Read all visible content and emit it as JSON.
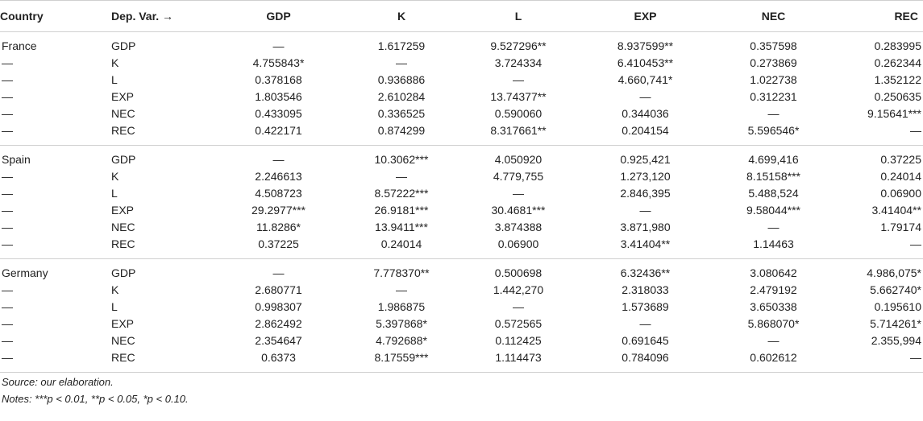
{
  "table": {
    "headers": [
      "Country",
      "Dep. Var. →",
      "GDP",
      "K",
      "L",
      "EXP",
      "NEC",
      "REC"
    ],
    "groups": [
      {
        "rows": [
          {
            "country": "France",
            "dep": "GDP",
            "values": [
              "—",
              "1.617259",
              "9.527296**",
              "8.937599**",
              "0.357598",
              "0.283995"
            ]
          },
          {
            "country": "—",
            "dep": "K",
            "values": [
              "4.755843*",
              "—",
              "3.724334",
              "6.410453**",
              "0.273869",
              "0.262344"
            ]
          },
          {
            "country": "—",
            "dep": "L",
            "values": [
              "0.378168",
              "0.936886",
              "—",
              "4.660,741*",
              "1.022738",
              "1.352122"
            ]
          },
          {
            "country": "—",
            "dep": "EXP",
            "values": [
              "1.803546",
              "2.610284",
              "13.74377**",
              "—",
              "0.312231",
              "0.250635"
            ]
          },
          {
            "country": "—",
            "dep": "NEC",
            "values": [
              "0.433095",
              "0.336525",
              "0.590060",
              "0.344036",
              "—",
              "9.15641***"
            ]
          },
          {
            "country": "—",
            "dep": "REC",
            "values": [
              "0.422171",
              "0.874299",
              "8.317661**",
              "0.204154",
              "5.596546*",
              "—"
            ]
          }
        ]
      },
      {
        "rows": [
          {
            "country": "Spain",
            "dep": "GDP",
            "values": [
              "—",
              "10.3062***",
              "4.050920",
              "0.925,421",
              "4.699,416",
              "0.37225"
            ]
          },
          {
            "country": "—",
            "dep": "K",
            "values": [
              "2.246613",
              "—",
              "4.779,755",
              "1.273,120",
              "8.15158***",
              "0.24014"
            ]
          },
          {
            "country": "—",
            "dep": "L",
            "values": [
              "4.508723",
              "8.57222***",
              "—",
              "2.846,395",
              "5.488,524",
              "0.06900"
            ]
          },
          {
            "country": "—",
            "dep": "EXP",
            "values": [
              "29.2977***",
              "26.9181***",
              "30.4681***",
              "—",
              "9.58044***",
              "3.41404**"
            ]
          },
          {
            "country": "—",
            "dep": "NEC",
            "values": [
              "11.8286*",
              "13.9411***",
              "3.874388",
              "3.871,980",
              "—",
              "1.79174"
            ]
          },
          {
            "country": "—",
            "dep": "REC",
            "values": [
              "0.37225",
              "0.24014",
              "0.06900",
              "3.41404**",
              "1.14463",
              "—"
            ]
          }
        ]
      },
      {
        "rows": [
          {
            "country": "Germany",
            "dep": "GDP",
            "values": [
              "—",
              "7.778370**",
              "0.500698",
              "6.32436**",
              "3.080642",
              "4.986,075*"
            ]
          },
          {
            "country": "—",
            "dep": "K",
            "values": [
              "2.680771",
              "—",
              "1.442,270",
              "2.318033",
              "2.479192",
              "5.662740*"
            ]
          },
          {
            "country": "—",
            "dep": "L",
            "values": [
              "0.998307",
              "1.986875",
              "—",
              "1.573689",
              "3.650338",
              "0.195610"
            ]
          },
          {
            "country": "—",
            "dep": "EXP",
            "values": [
              "2.862492",
              "5.397868*",
              "0.572565",
              "—",
              "5.868070*",
              "5.714261*"
            ]
          },
          {
            "country": "—",
            "dep": "NEC",
            "values": [
              "2.354647",
              "4.792688*",
              "0.112425",
              "0.691645",
              "—",
              "2.355,994"
            ]
          },
          {
            "country": "—",
            "dep": "REC",
            "values": [
              "0.6373",
              "8.17559***",
              "1.114473",
              "0.784096",
              "0.602612",
              "—"
            ]
          }
        ]
      }
    ]
  },
  "notes": {
    "source": "Source: our elaboration.",
    "significance": "Notes: ***p < 0.01, **p < 0.05, *p < 0.10."
  }
}
